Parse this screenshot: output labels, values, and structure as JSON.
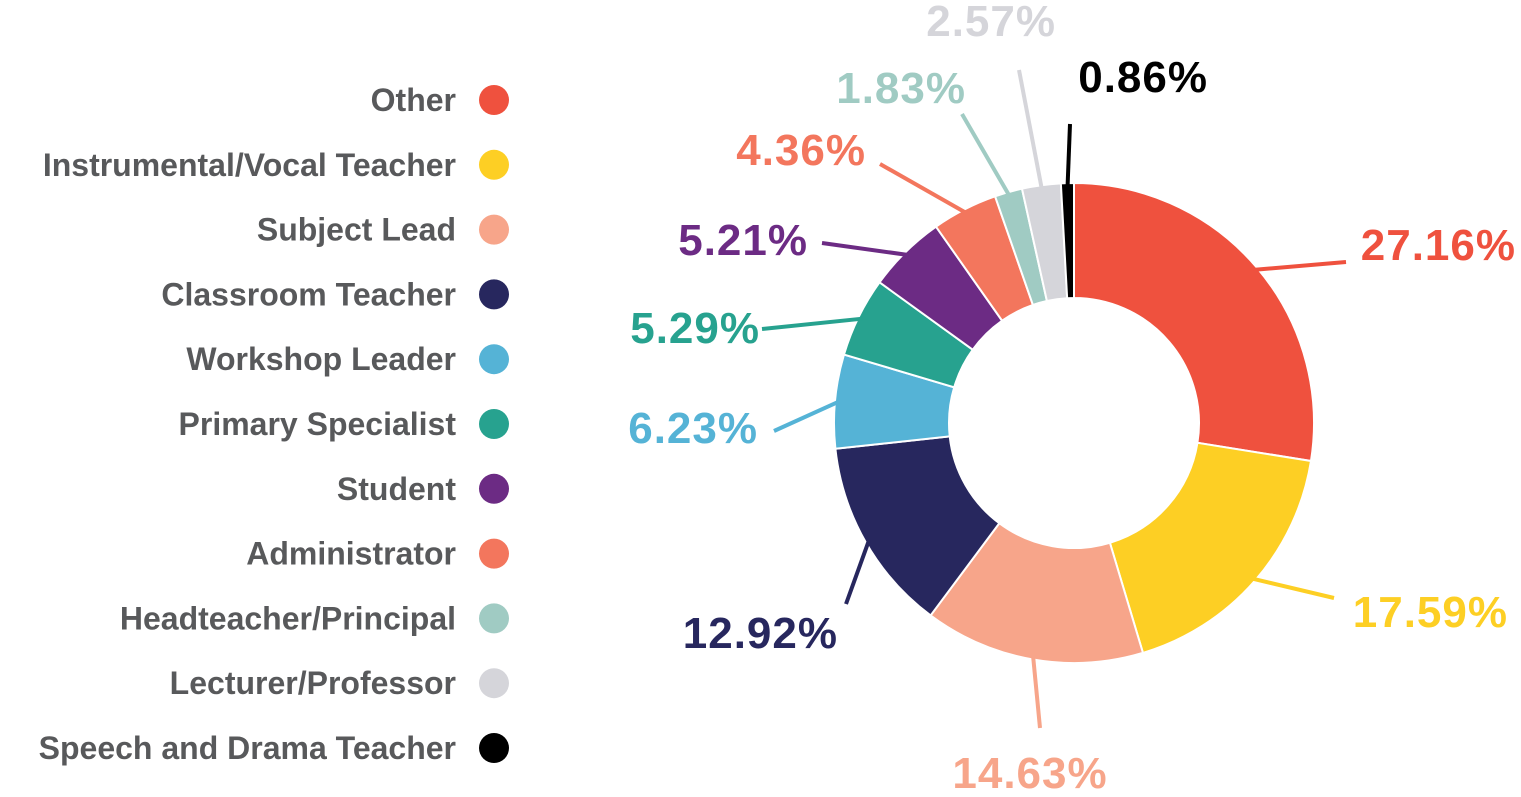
{
  "chart_data": {
    "type": "pie",
    "variant": "donut",
    "categories": [
      "Other",
      "Instrumental/Vocal Teacher",
      "Subject Lead",
      "Classroom Teacher",
      "Workshop Leader",
      "Primary Specialist",
      "Student",
      "Administrator",
      "Headteacher/Principal",
      "Lecturer/Professor",
      "Speech and Drama Teacher"
    ],
    "values": [
      27.16,
      17.59,
      14.63,
      12.92,
      6.23,
      5.29,
      5.21,
      4.36,
      1.83,
      2.57,
      0.86
    ],
    "value_labels": [
      "27.16%",
      "17.59%",
      "14.63%",
      "12.92%",
      "6.23%",
      "5.29%",
      "5.21%",
      "4.36%",
      "1.83%",
      "2.57%",
      "0.86%"
    ],
    "colors": [
      "#ef513e",
      "#fdcf24",
      "#f7a58a",
      "#27275e",
      "#55b3d6",
      "#27a28f",
      "#6c2b84",
      "#f3765d",
      "#a0cbc3",
      "#d5d5da",
      "#000000"
    ],
    "legend_position": "left",
    "start_angle": "12 o'clock",
    "direction": "clockwise"
  }
}
